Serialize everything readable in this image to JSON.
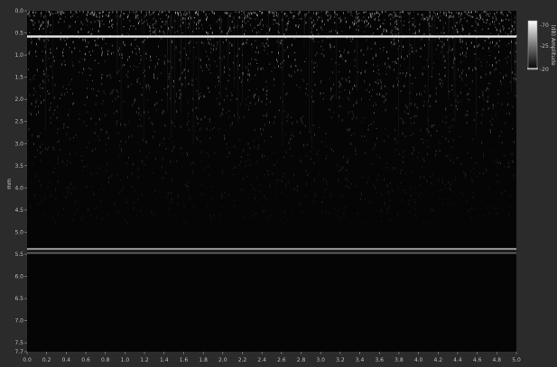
{
  "colors": {
    "window_bg": "#2b2b2b",
    "plot_bg": "#050505",
    "axis_text": "#bdbdbd",
    "reflection": "#e8e8e8"
  },
  "y_axis": {
    "label": "mm"
  },
  "colorbar": {
    "label": "(dB) Amplitude",
    "tick_labels": [
      "-70",
      "-25",
      "-20"
    ]
  },
  "chart_data": {
    "type": "heatmap",
    "title": "",
    "xlabel": "",
    "ylabel": "mm",
    "colormap": "grayscale",
    "xlim": [
      0,
      5.0
    ],
    "ylim": [
      7.7,
      0
    ],
    "x_ticks": [
      "0.0",
      "0.2",
      "0.4",
      "0.6",
      "0.8",
      "1.0",
      "1.2",
      "1.4",
      "1.6",
      "1.8",
      "2.0",
      "2.2",
      "2.4",
      "2.6",
      "2.8",
      "3.0",
      "3.2",
      "3.4",
      "3.6",
      "3.8",
      "4.0",
      "4.2",
      "4.4",
      "4.6",
      "4.8",
      "5.0"
    ],
    "y_ticks": [
      "0.0",
      "0.5",
      "1.0",
      "1.5",
      "2.0",
      "2.5",
      "3.0",
      "3.5",
      "4.0",
      "4.5",
      "5.0",
      "5.5",
      "6.0",
      "6.5",
      "7.0",
      "7.5"
    ],
    "y_tick_extra": "7.7",
    "features": [
      {
        "name": "surface reflection",
        "depth_mm": 0.58,
        "intensity": 0.95
      },
      {
        "name": "back-wall reflection",
        "depth_mm": 5.38,
        "intensity": 0.7
      },
      {
        "name": "back-wall reflection",
        "depth_mm": 5.47,
        "intensity": 0.5
      }
    ],
    "speckle_depth_range_mm": [
      0.0,
      3.3
    ],
    "grid": false
  }
}
